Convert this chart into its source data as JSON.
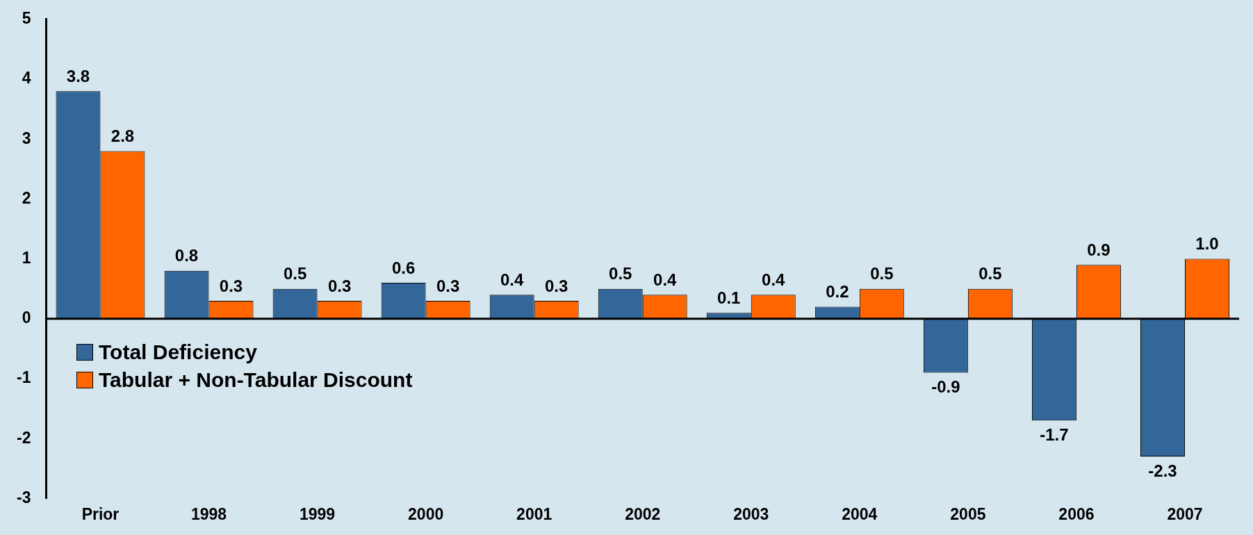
{
  "chart_data": {
    "type": "bar",
    "categories": [
      "Prior",
      "1998",
      "1999",
      "2000",
      "2001",
      "2002",
      "2003",
      "2004",
      "2005",
      "2006",
      "2007"
    ],
    "series": [
      {
        "name": "Total Deficiency",
        "color": "#336699",
        "values": [
          3.8,
          0.8,
          0.5,
          0.6,
          0.4,
          0.5,
          0.1,
          0.2,
          -0.9,
          -1.7,
          -2.3
        ],
        "value_labels": [
          "3.8",
          "0.8",
          "0.5",
          "0.6",
          "0.4",
          "0.5",
          "0.1",
          "0.2",
          "-0.9",
          "-1.7",
          "-2.3"
        ]
      },
      {
        "name": "Tabular + Non-Tabular Discount",
        "color": "#ff6600",
        "values": [
          2.8,
          0.3,
          0.3,
          0.3,
          0.3,
          0.4,
          0.4,
          0.5,
          0.5,
          0.9,
          1.0
        ],
        "value_labels": [
          "2.8",
          "0.3",
          "0.3",
          "0.3",
          "0.3",
          "0.4",
          "0.4",
          "0.5",
          "0.5",
          "0.9",
          "1.0"
        ]
      }
    ],
    "ylim": [
      -3,
      5
    ],
    "yticks": [
      -3,
      -2,
      -1,
      0,
      1,
      2,
      3,
      4,
      5
    ],
    "legend": "bottom left",
    "ref_lines": [
      {
        "axis": "y",
        "value": 0,
        "color": "#000000"
      }
    ],
    "grid": false
  }
}
